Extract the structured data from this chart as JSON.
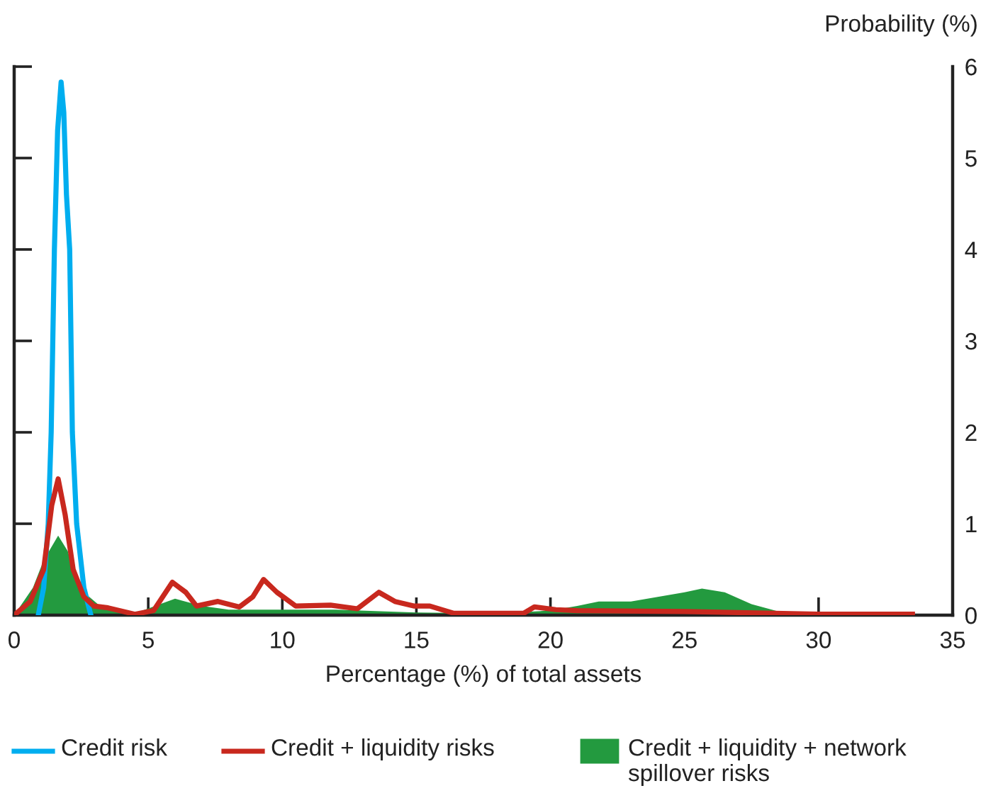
{
  "chart_data": {
    "type": "line",
    "xlabel": "Percentage (%) of total assets",
    "ylabel": "Probability (%)",
    "xlim": [
      0,
      35
    ],
    "xticks": [
      0,
      5,
      10,
      15,
      20,
      25,
      30,
      35
    ],
    "ylim": [
      0,
      6
    ],
    "yticks": [
      0,
      1,
      2,
      3,
      4,
      5,
      6
    ],
    "grid": false,
    "legend": "bottom",
    "marker": "none",
    "line_style": "solid",
    "series": [
      {
        "name": "Credit risk",
        "color": "#00aeef",
        "x": [
          0.9,
          1.1,
          1.27,
          1.38,
          1.5,
          1.62,
          1.75,
          1.85,
          1.95,
          2.07,
          2.17,
          2.33,
          2.6,
          2.86
        ],
        "values": [
          0,
          0.3,
          1,
          2,
          4,
          5.3,
          5.83,
          5.5,
          4.6,
          4,
          2,
          1,
          0.3,
          0
        ]
      },
      {
        "name": "Credit + liquidity risks",
        "color": "#c8281e",
        "x": [
          0,
          0.6,
          1.1,
          1.4,
          1.64,
          1.9,
          2.2,
          2.6,
          2.97,
          3.5,
          4.5,
          5.2,
          5.9,
          6.4,
          6.8,
          7.6,
          8.4,
          8.9,
          9.3,
          9.8,
          10.5,
          11.8,
          12.8,
          13.6,
          14.2,
          14.9,
          15.5,
          16.4,
          19,
          19.4,
          20.2,
          21,
          25,
          30,
          33.5
        ],
        "values": [
          0,
          0.15,
          0.5,
          1.2,
          1.49,
          1.1,
          0.5,
          0.2,
          0.1,
          0.08,
          0.01,
          0.05,
          0.36,
          0.25,
          0.1,
          0.15,
          0.09,
          0.2,
          0.39,
          0.25,
          0.1,
          0.11,
          0.07,
          0.25,
          0.15,
          0.1,
          0.1,
          0.02,
          0.02,
          0.09,
          0.06,
          0.05,
          0.04,
          0.01,
          0.01
        ]
      },
      {
        "name": "Credit + liquidity + network spillover risks",
        "type": "area",
        "color": "#239a3f",
        "x": [
          0,
          0.7,
          1.1,
          1.64,
          2.0,
          2.4,
          3.2,
          4.5,
          6.0,
          7.0,
          8.0,
          12.0,
          15.0,
          18.0,
          20.0,
          21.0,
          21.8,
          23.0,
          24.0,
          25.0,
          25.65,
          26.5,
          27.5,
          28.5,
          30.0
        ],
        "values": [
          0,
          0.3,
          0.6,
          0.87,
          0.7,
          0.3,
          0.1,
          0.02,
          0.18,
          0.1,
          0.06,
          0.06,
          0.03,
          0.02,
          0.05,
          0.1,
          0.15,
          0.15,
          0.2,
          0.25,
          0.29,
          0.25,
          0.12,
          0.04,
          0.01
        ]
      }
    ]
  }
}
